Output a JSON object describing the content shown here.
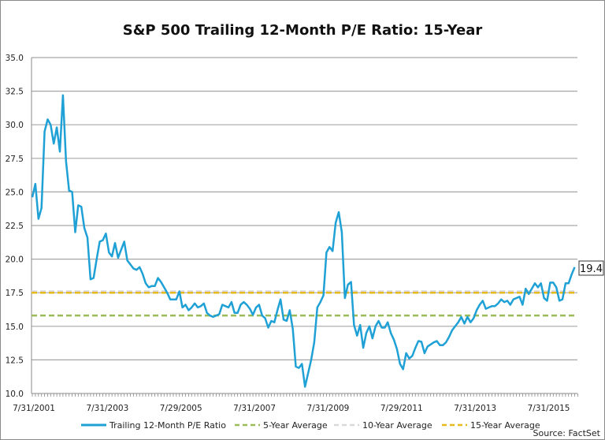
{
  "chart_data": {
    "type": "line",
    "title": "S&P 500 Trailing 12-Month P/E Ratio: 15-Year",
    "xlabel": "",
    "ylabel": "",
    "ylim": [
      10.0,
      35.0
    ],
    "yticks": [
      "10.0",
      "12.5",
      "15.0",
      "17.5",
      "20.0",
      "22.5",
      "25.0",
      "27.5",
      "30.0",
      "32.5",
      "35.0"
    ],
    "xticks": [
      "7/31/2001",
      "7/31/2003",
      "7/29/2005",
      "7/31/2007",
      "7/31/2009",
      "7/29/2011",
      "7/31/2013",
      "7/31/2015"
    ],
    "grid": true,
    "legend_placement": "bottom",
    "x_start_date": "2001-07-31",
    "frequency": "monthly",
    "series": [
      {
        "name": "Trailing 12-Month P/E Ratio",
        "color": "#1fa1d6",
        "style": "solid",
        "values": [
          24.6,
          25.6,
          23.0,
          23.8,
          29.5,
          30.4,
          30.0,
          28.6,
          29.8,
          28.0,
          32.2,
          27.3,
          25.1,
          25.0,
          22.0,
          24.0,
          23.9,
          22.3,
          21.6,
          18.5,
          18.6,
          20.0,
          21.3,
          21.4,
          21.9,
          20.5,
          20.2,
          21.2,
          20.1,
          20.7,
          21.3,
          19.9,
          19.6,
          19.3,
          19.2,
          19.4,
          18.9,
          18.2,
          17.9,
          18.0,
          18.0,
          18.6,
          18.3,
          17.9,
          17.5,
          17.0,
          17.0,
          17.0,
          17.6,
          16.4,
          16.6,
          16.2,
          16.4,
          16.7,
          16.4,
          16.5,
          16.7,
          16.0,
          15.8,
          15.7,
          15.8,
          15.9,
          16.6,
          16.5,
          16.4,
          16.8,
          16.0,
          16.0,
          16.6,
          16.8,
          16.6,
          16.3,
          15.85,
          16.4,
          16.6,
          15.8,
          15.6,
          14.9,
          15.4,
          15.3,
          16.2,
          17.0,
          15.5,
          15.4,
          16.2,
          14.8,
          12.0,
          11.9,
          12.2,
          10.5,
          11.5,
          12.5,
          13.8,
          16.4,
          16.8,
          17.3,
          20.5,
          20.9,
          20.6,
          22.7,
          23.5,
          22.0,
          17.1,
          18.1,
          18.3,
          15.1,
          14.3,
          15.1,
          13.4,
          14.5,
          15.0,
          14.1,
          15.0,
          15.4,
          14.9,
          14.9,
          15.3,
          14.5,
          14.0,
          13.3,
          12.2,
          11.8,
          13.0,
          12.6,
          12.8,
          13.4,
          13.9,
          13.85,
          13.0,
          13.5,
          13.65,
          13.8,
          13.9,
          13.6,
          13.6,
          13.8,
          14.2,
          14.7,
          15.0,
          15.3,
          15.7,
          15.2,
          15.7,
          15.3,
          15.6,
          16.2,
          16.6,
          16.9,
          16.3,
          16.4,
          16.5,
          16.5,
          16.7,
          17.0,
          16.8,
          16.9,
          16.6,
          17.0,
          17.1,
          17.2,
          16.6,
          17.8,
          17.4,
          17.8,
          18.2,
          17.9,
          18.2,
          17.1,
          16.9,
          18.25,
          18.25,
          17.9,
          16.9,
          17.0,
          18.2,
          18.2,
          18.85,
          19.4
        ]
      },
      {
        "name": "5-Year Average",
        "color": "#9bbb59",
        "style": "dashed",
        "value": 15.8
      },
      {
        "name": "10-Year Average",
        "color": "#d9d9d9",
        "style": "dashed",
        "value": 17.6
      },
      {
        "name": "15-Year Average",
        "color": "#e6b91e",
        "style": "dashed",
        "value": 17.5
      }
    ],
    "annotations": [
      {
        "text": "19.4",
        "target": "last-value"
      }
    ],
    "source": "Source: FactSet"
  }
}
